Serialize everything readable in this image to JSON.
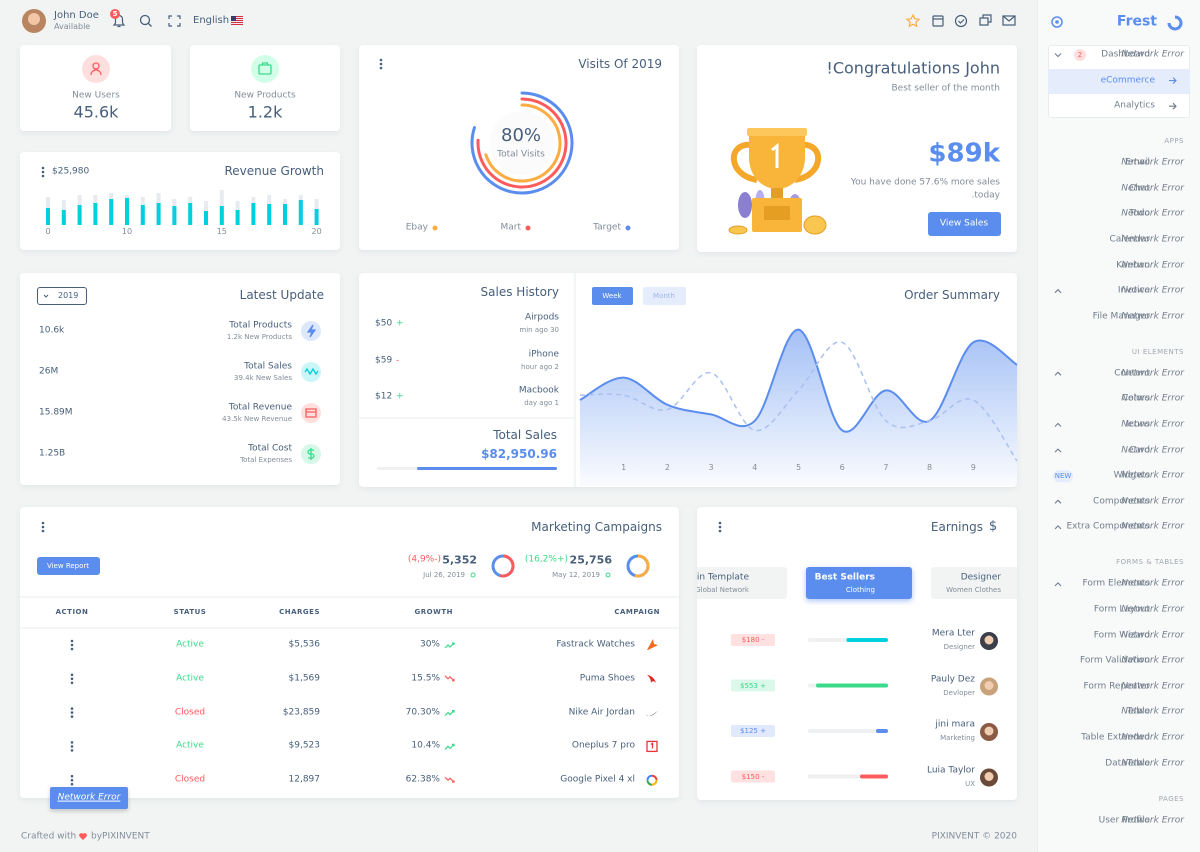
{
  "topbar": {
    "user_name": "John Doe",
    "user_status": "Available",
    "notifications": "5",
    "language": "English"
  },
  "brand": "Frest",
  "stats": [
    {
      "label": "New Users",
      "value": "45.6k"
    },
    {
      "label": "New Products",
      "value": "1.2k"
    }
  ],
  "revenue_growth": {
    "title": "Revenue Growth",
    "amount": "$25,980",
    "values": [
      17,
      15,
      20,
      22,
      26,
      27,
      20,
      22,
      19,
      22,
      14,
      19,
      15,
      22,
      21,
      21,
      25,
      16
    ],
    "totals": [
      28,
      25,
      30,
      30,
      32,
      30,
      28,
      32,
      26,
      28,
      24,
      35,
      24,
      28,
      30,
      26,
      30,
      26
    ],
    "ylim": [
      0,
      40
    ],
    "x_labels": [
      "0",
      "10",
      "15",
      "20"
    ]
  },
  "visits": {
    "title": "Visits Of 2019",
    "total": 80,
    "total_label": "80%",
    "caption": "Total Visits",
    "series": [
      {
        "name": "Ebay",
        "color": "#fdac41",
        "value": 70
      },
      {
        "name": "Mart",
        "color": "#ff5b5c",
        "value": 76
      },
      {
        "name": "Target",
        "color": "#5a8dee",
        "value": 80
      }
    ]
  },
  "congrats": {
    "title": "!Congratulations John",
    "subtitle": "Best seller of the month",
    "amount": "$89k",
    "line1": "You have done 57.6% more sales",
    "line2": ".today",
    "button": "View Sales"
  },
  "latest_update": {
    "title": "Latest Update",
    "year": "2019",
    "rows": [
      {
        "value": "10.6k",
        "title": "Total Products",
        "subtitle": "1.2k New Products",
        "color": "#5a8dee"
      },
      {
        "value": "26M",
        "title": "Total Sales",
        "subtitle": "39.4k New Sales",
        "color": "#00cfdd"
      },
      {
        "value": "15.89M",
        "title": "Total Revenue",
        "subtitle": "43.5k New Revenue",
        "color": "#ff5b5c"
      },
      {
        "value": "1.25B",
        "title": "Total Cost",
        "subtitle": "Total Expenses",
        "color": "#39da8a"
      }
    ]
  },
  "sales_history": {
    "title": "Sales History",
    "rows": [
      {
        "amount": "$50",
        "sign": "+",
        "item": "Airpods",
        "time": "min ago 30"
      },
      {
        "amount": "$59",
        "sign": "-",
        "item": "iPhone",
        "time": "hour ago 2"
      },
      {
        "amount": "$12",
        "sign": "+",
        "item": "Macbook",
        "time": "day ago 1"
      }
    ],
    "total_label": "Total Sales",
    "total": "$82,950.96"
  },
  "order_summary": {
    "title": "Order Summary",
    "tabs": [
      "Week",
      "Month"
    ]
  },
  "chart_data": {
    "type": "line",
    "x": [
      0,
      1,
      2,
      3,
      4,
      5,
      6,
      7,
      8,
      9,
      10
    ],
    "xlim": [
      0,
      10
    ],
    "xticks": [
      1,
      2,
      3,
      4,
      5,
      6,
      7,
      8,
      9
    ],
    "ylim": [
      0,
      100
    ],
    "series": [
      {
        "color": "#5a8dee",
        "area": true,
        "values": [
          50,
          64,
          47,
          41,
          37,
          94,
          31,
          56,
          37,
          86,
          72
        ]
      },
      {
        "color": "#a9c1f0",
        "dashed": true,
        "values": [
          53,
          53,
          44,
          67,
          31,
          56,
          86,
          37,
          37,
          50,
          12
        ]
      }
    ]
  },
  "marketing": {
    "title": "Marketing Campaigns",
    "button": "View Report",
    "stats": [
      {
        "change": "(4,9%-)",
        "change_color": "#ff5b5c",
        "value": "5,352",
        "date": "Jul 26, 2019",
        "colors": [
          "#ff5b5c",
          "#5a8dee"
        ]
      },
      {
        "change": "(16,2%+)",
        "change_color": "#39da8a",
        "value": "25,756",
        "date": "May 12, 2019",
        "colors": [
          "#fdac41",
          "#5a8dee"
        ]
      }
    ],
    "columns": [
      "ACTION",
      "STATUS",
      "CHARGES",
      "GROWTH",
      "CAMPAIGN"
    ],
    "rows": [
      {
        "status": "Active",
        "color": "#39da8a",
        "charges": "$5,536",
        "growth": "30%",
        "trend": "up",
        "campaign": "Fastrack Watches"
      },
      {
        "status": "Active",
        "color": "#39da8a",
        "charges": "$1,569",
        "growth": "15.5%",
        "trend": "down",
        "campaign": "Puma Shoes"
      },
      {
        "status": "Closed",
        "color": "#ff5b5c",
        "charges": "$23,859",
        "growth": "70.30%",
        "trend": "up",
        "campaign": "Nike Air Jordan"
      },
      {
        "status": "Active",
        "color": "#39da8a",
        "charges": "$9,523",
        "growth": "10.4%",
        "trend": "up",
        "campaign": "Oneplus 7 pro"
      },
      {
        "status": "Closed",
        "color": "#ff5b5c",
        "charges": "12,897",
        "growth": "62.38%",
        "trend": "down",
        "campaign": "Google Pixel 4 xl"
      }
    ]
  },
  "toast": "Network Error",
  "earnings": {
    "title": "Earnings",
    "icon": "$",
    "tabs": [
      {
        "title": "in Template",
        "subtitle": "Global Network"
      },
      {
        "title": "Best Sellers",
        "subtitle": "Clothing",
        "active": true
      },
      {
        "title": "Designer",
        "subtitle": "Women Clothes"
      }
    ],
    "rows": [
      {
        "amount": "$180 -",
        "color": "#ff5b5c",
        "progress": 52,
        "name": "Mera Lter",
        "role": "Designer"
      },
      {
        "amount": "$553 +",
        "color": "#39da8a",
        "progress": 90,
        "name": "Pauly Dez",
        "role": "Devloper"
      },
      {
        "amount": "$125 +",
        "color": "#5a8dee",
        "progress": 15,
        "name": "jini mara",
        "role": "Marketing"
      },
      {
        "amount": "$150 -",
        "color": "#ff5b5c",
        "progress": 35,
        "name": "Luia Taylor",
        "role": "UX"
      }
    ]
  },
  "footer": {
    "left": "Crafted with",
    "left_brand": "byPIXINVENT",
    "right": "PIXINVENT © 2020"
  },
  "sidebar": {
    "sections": [
      {
        "items": [
          {
            "label": "Dashboard",
            "badge": "2",
            "chevron": "down",
            "error": "Network Error"
          },
          {
            "label": "eCommerce",
            "active": true
          },
          {
            "label": "Analytics"
          }
        ]
      },
      {
        "title": "APPS",
        "items": [
          {
            "label": "Email",
            "error": "Network Error"
          },
          {
            "label": "Chat",
            "error": "Network Error"
          },
          {
            "label": "Todo",
            "error": "Network Error"
          },
          {
            "label": "Calendar",
            "error": "Network Error"
          },
          {
            "label": "Kanban",
            "error": "Network Error"
          },
          {
            "label": "Invoice",
            "chevron": "up",
            "error": "Network Error"
          },
          {
            "label": "File Manager",
            "error": "Network Error"
          }
        ]
      },
      {
        "title": "UI ELEMENTS",
        "items": [
          {
            "label": "Content",
            "chevron": "up",
            "error": "Network Error"
          },
          {
            "label": "Colors",
            "error": "Network Error"
          },
          {
            "label": "Icons",
            "chevron": "up",
            "error": "Network Error"
          },
          {
            "label": "Card",
            "chevron": "up",
            "error": "Network Error"
          },
          {
            "label": "Widgets",
            "badge": "NEW",
            "error": "Network Error"
          },
          {
            "label": "Components",
            "chevron": "up",
            "error": "Network Error"
          },
          {
            "label": "Extra Components",
            "chevron": "up",
            "error": "Network Error"
          }
        ]
      },
      {
        "title": "FORMS & TABLES",
        "items": [
          {
            "label": "Form Elements",
            "chevron": "up",
            "error": "Network Error"
          },
          {
            "label": "Form Layout",
            "error": "Network Error"
          },
          {
            "label": "Form Wizard",
            "error": "Network Error"
          },
          {
            "label": "Form Validation",
            "error": "Network Error"
          },
          {
            "label": "Form Repeater",
            "error": "Network Error"
          },
          {
            "label": "Table",
            "error": "Network Error"
          },
          {
            "label": "Table Extended",
            "error": "Network Error"
          },
          {
            "label": "DataTable",
            "error": "Network Error"
          }
        ]
      },
      {
        "title": "PAGES",
        "items": [
          {
            "label": "User Profile",
            "error": "Network Error"
          }
        ]
      }
    ]
  }
}
